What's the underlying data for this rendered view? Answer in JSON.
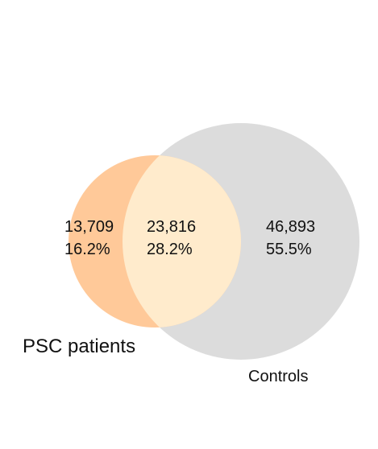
{
  "sets": [
    {
      "name": "PSC patients",
      "color": "#FFC999"
    },
    {
      "name": "Controls",
      "color": "#DCDCDC"
    }
  ],
  "intersection_color": "#FFEBCC",
  "regions": {
    "psc_only": {
      "count": "13,709",
      "percent": "16.2%"
    },
    "both": {
      "count": "23,816",
      "percent": "28.2%"
    },
    "controls_only": {
      "count": "46,893",
      "percent": "55.5%"
    }
  }
}
